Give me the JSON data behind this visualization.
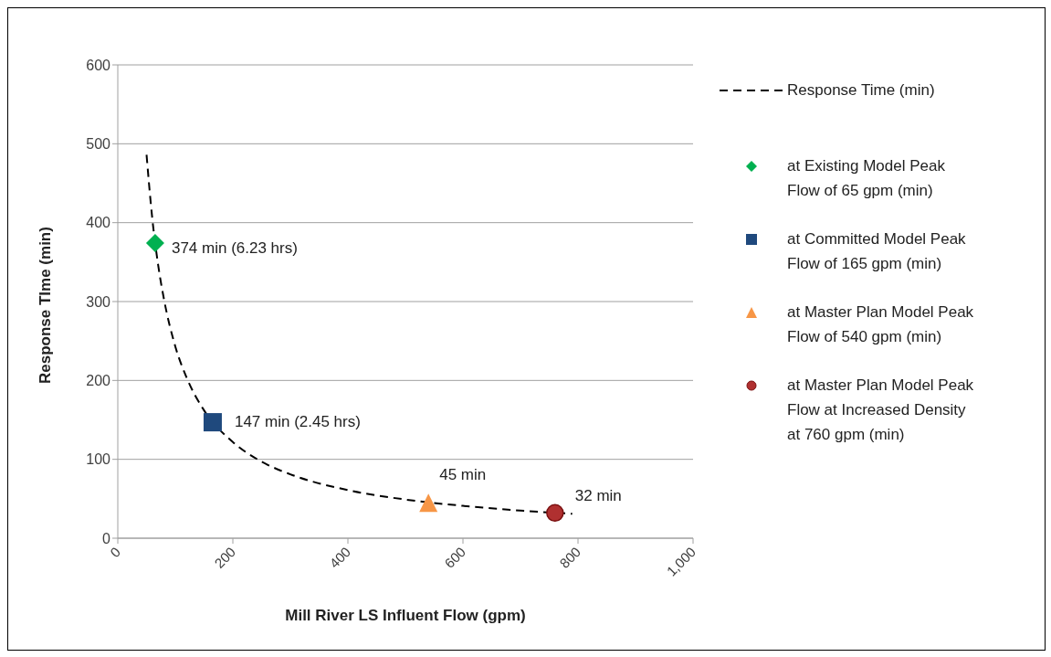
{
  "chart_data": {
    "type": "scatter",
    "xlabel": "Mill River LS Influent Flow (gpm)",
    "ylabel": "Response TIme (min)",
    "xlim": [
      0,
      1000
    ],
    "xticks": [
      0,
      200,
      400,
      600,
      800,
      {
        "value": 1000,
        "label": "1,000"
      }
    ],
    "ylim": [
      0,
      600
    ],
    "yticks": [
      0,
      100,
      200,
      300,
      400,
      500,
      600
    ],
    "grid": "y",
    "legend": "right",
    "series": [
      {
        "type": "line",
        "name": "Response Time (min)",
        "color": "#000000",
        "line_style": "dashed",
        "marker": "none",
        "x": [
          50,
          60,
          70,
          80,
          100,
          120,
          150,
          200,
          250,
          300,
          400,
          500,
          600,
          700,
          790
        ],
        "values": [
          486,
          405,
          347,
          304,
          243,
          203,
          162,
          122,
          97,
          81,
          61,
          49,
          41,
          35,
          31
        ]
      },
      {
        "name": "at Existing Model Peak Flow of 65 gpm (min)",
        "color": "#00b050",
        "marker": "diamond",
        "x": [
          65
        ],
        "values": [
          374
        ]
      },
      {
        "name": "at Committed Model Peak Flow of 165 gpm (min)",
        "color": "#1f497d",
        "marker": "square",
        "x": [
          165
        ],
        "values": [
          147
        ]
      },
      {
        "name": "at Master Plan Model Peak Flow of 540 gpm (min)",
        "color": "#f79646",
        "marker": "triangle",
        "x": [
          540
        ],
        "values": [
          45
        ]
      },
      {
        "name": "at Master Plan Model Peak Flow at Increased Density at 760 gpm (min)",
        "color": "#b03030",
        "marker": "circle",
        "x": [
          760
        ],
        "values": [
          32
        ]
      }
    ],
    "annotations": [
      {
        "text": "374 min (6.23 hrs)",
        "x": 65,
        "y": 374
      },
      {
        "text": "147 min (2.45 hrs)",
        "x": 165,
        "y": 147
      },
      {
        "text": "45 min",
        "x": 540,
        "y": 45
      },
      {
        "text": "32 min",
        "x": 760,
        "y": 32
      }
    ]
  }
}
